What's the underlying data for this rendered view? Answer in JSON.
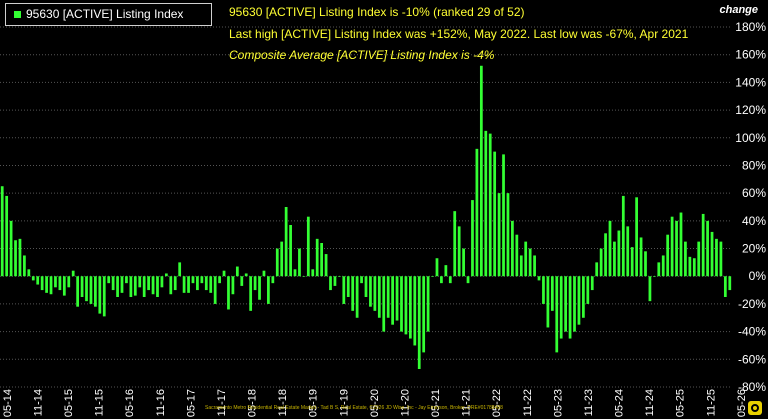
{
  "legend": {
    "label": "95630 [ACTIVE] Listing Index",
    "color": "#33ff33"
  },
  "info": {
    "line1": "95630 [ACTIVE] Listing Index is -10% (ranked 29 of 52)",
    "line2": "Last high [ACTIVE] Listing Index was +152%, May 2022. Last low was -67%, Apr 2021",
    "line3": "Composite Average [ACTIVE] Listing Index is -4%"
  },
  "axis_title": "change",
  "credit": "Sacramento Metro Residential Real Estate Market - Tad B S, Real Estate, ©2026 JD Wise, Inc - Jay Emerson, Broker, DRE#01788488",
  "colors": {
    "bar": "#33ff33",
    "grid": "#555555",
    "text": "#ffffff",
    "info": "#ffff33"
  },
  "chart_data": {
    "type": "bar",
    "ylim": [
      -80,
      180
    ],
    "yticks": [
      "180%",
      "160%",
      "140%",
      "120%",
      "100%",
      "80%",
      "60%",
      "40%",
      "20%",
      "0%",
      "-20%",
      "-40%",
      "-60%",
      "-80%"
    ],
    "xticks": [
      "05-14",
      "11-14",
      "05-15",
      "11-15",
      "05-16",
      "11-16",
      "05-17",
      "11-17",
      "05-18",
      "11-18",
      "05-19",
      "11-19",
      "05-20",
      "11-20",
      "05-21",
      "11-21",
      "05-22",
      "11-22",
      "05-23",
      "11-23",
      "05-24",
      "11-24",
      "05-25",
      "11-25",
      "05-26"
    ],
    "values": [
      65,
      58,
      40,
      26,
      27,
      15,
      5,
      -3,
      -6,
      -10,
      -12,
      -13,
      -8,
      -10,
      -14,
      -8,
      4,
      -22,
      -15,
      -18,
      -20,
      -22,
      -27,
      -29,
      -5,
      -10,
      -15,
      -12,
      -5,
      -15,
      -14,
      -8,
      -15,
      -10,
      -13,
      -15,
      -8,
      2,
      -13,
      -10,
      10,
      -12,
      -12,
      -5,
      -10,
      -5,
      -10,
      -12,
      -20,
      -5,
      4,
      -24,
      -13,
      7,
      -7,
      2,
      -25,
      -10,
      -17,
      4,
      -20,
      -5,
      20,
      25,
      50,
      37,
      5,
      20,
      0,
      43,
      5,
      27,
      24,
      16,
      -10,
      -7,
      0,
      -20,
      -15,
      -25,
      -30,
      -5,
      -15,
      -22,
      -25,
      -30,
      -40,
      -30,
      -35,
      -32,
      -40,
      -42,
      -45,
      -50,
      -67,
      -55,
      -40,
      0,
      13,
      -5,
      8,
      -5,
      47,
      36,
      20,
      -5,
      55,
      92,
      152,
      105,
      103,
      90,
      60,
      88,
      60,
      40,
      30,
      15,
      25,
      20,
      15,
      -3,
      -20,
      -37,
      -25,
      -55,
      -45,
      -40,
      -45,
      -40,
      -35,
      -30,
      -20,
      -10,
      10,
      20,
      31,
      40,
      25,
      33,
      58,
      36,
      21,
      57,
      28,
      18,
      -18,
      0,
      10,
      15,
      30,
      43,
      40,
      46,
      25,
      14,
      13,
      25,
      45,
      40,
      32,
      27,
      25,
      -15,
      -10
    ]
  }
}
